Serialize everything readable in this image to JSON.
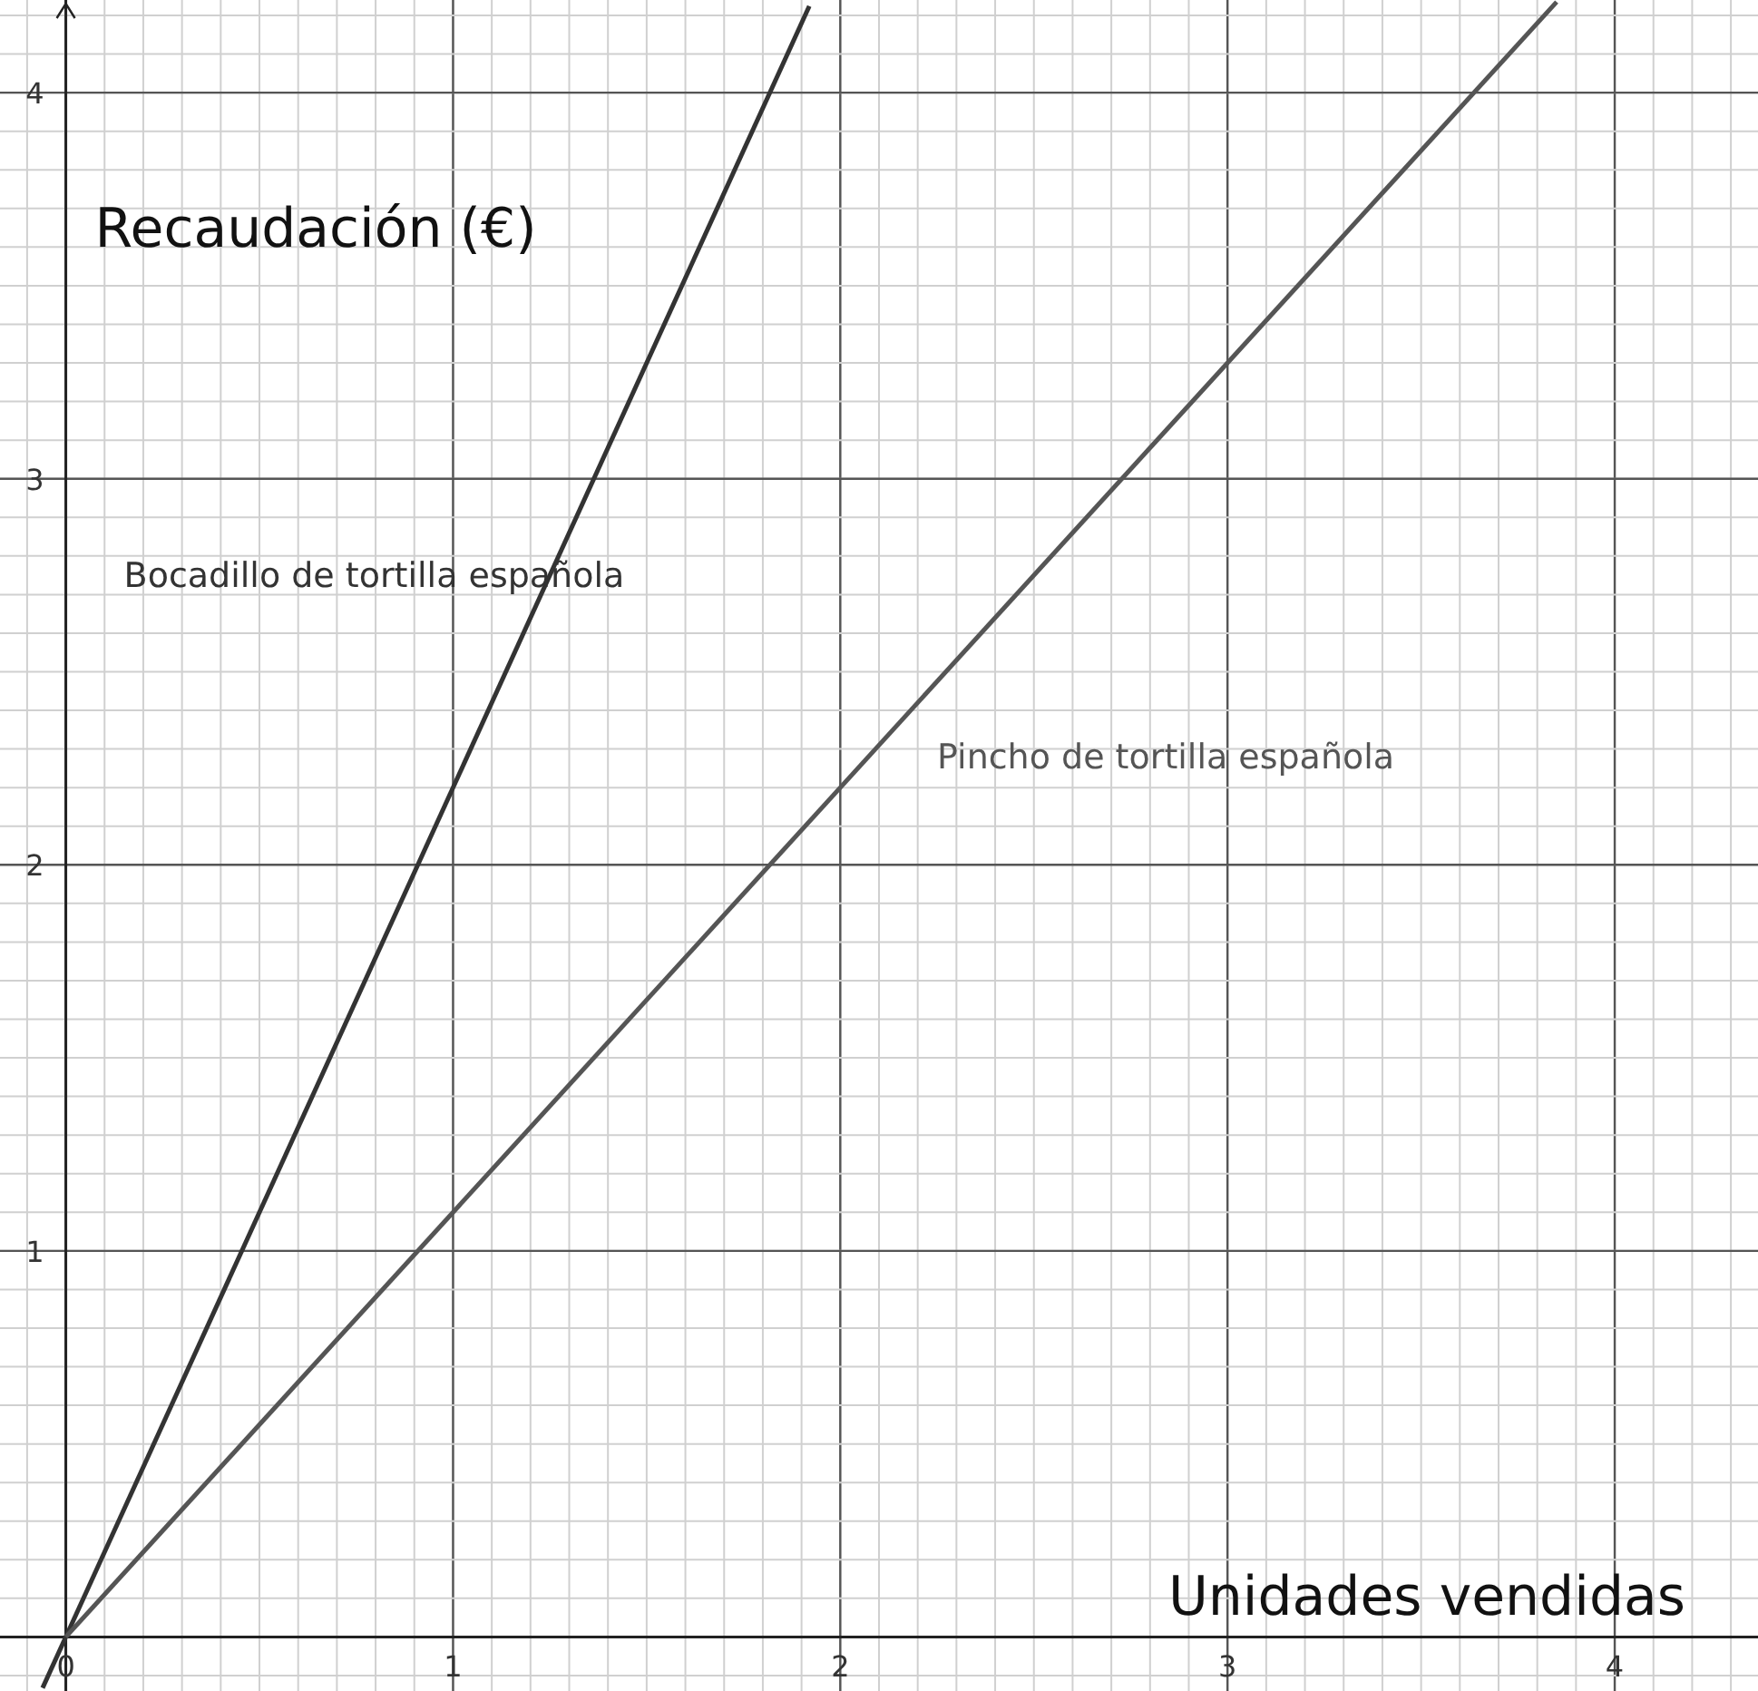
{
  "chart_data": {
    "type": "line",
    "xlabel": "Unidades vendidas",
    "ylabel": "Recaudación (€)",
    "xlim": [
      -0.17,
      4.37
    ],
    "ylim": [
      -0.14,
      4.24
    ],
    "xticks": [
      0,
      1,
      2,
      3,
      4
    ],
    "yticks": [
      {
        "value": 0,
        "label": null
      },
      1,
      2,
      3,
      4
    ],
    "grid": true,
    "legend": false,
    "marker": "none",
    "line_style": "solid",
    "series": [
      {
        "name": "Bocadillo de tortilla española",
        "color": "#333333",
        "x": [
          -0.06,
          1.92
        ],
        "values": [
          -0.132,
          4.224
        ]
      },
      {
        "name": "Pincho de tortilla española",
        "color": "#555555",
        "x": [
          0,
          3.85
        ],
        "values": [
          0,
          4.235
        ]
      }
    ]
  }
}
